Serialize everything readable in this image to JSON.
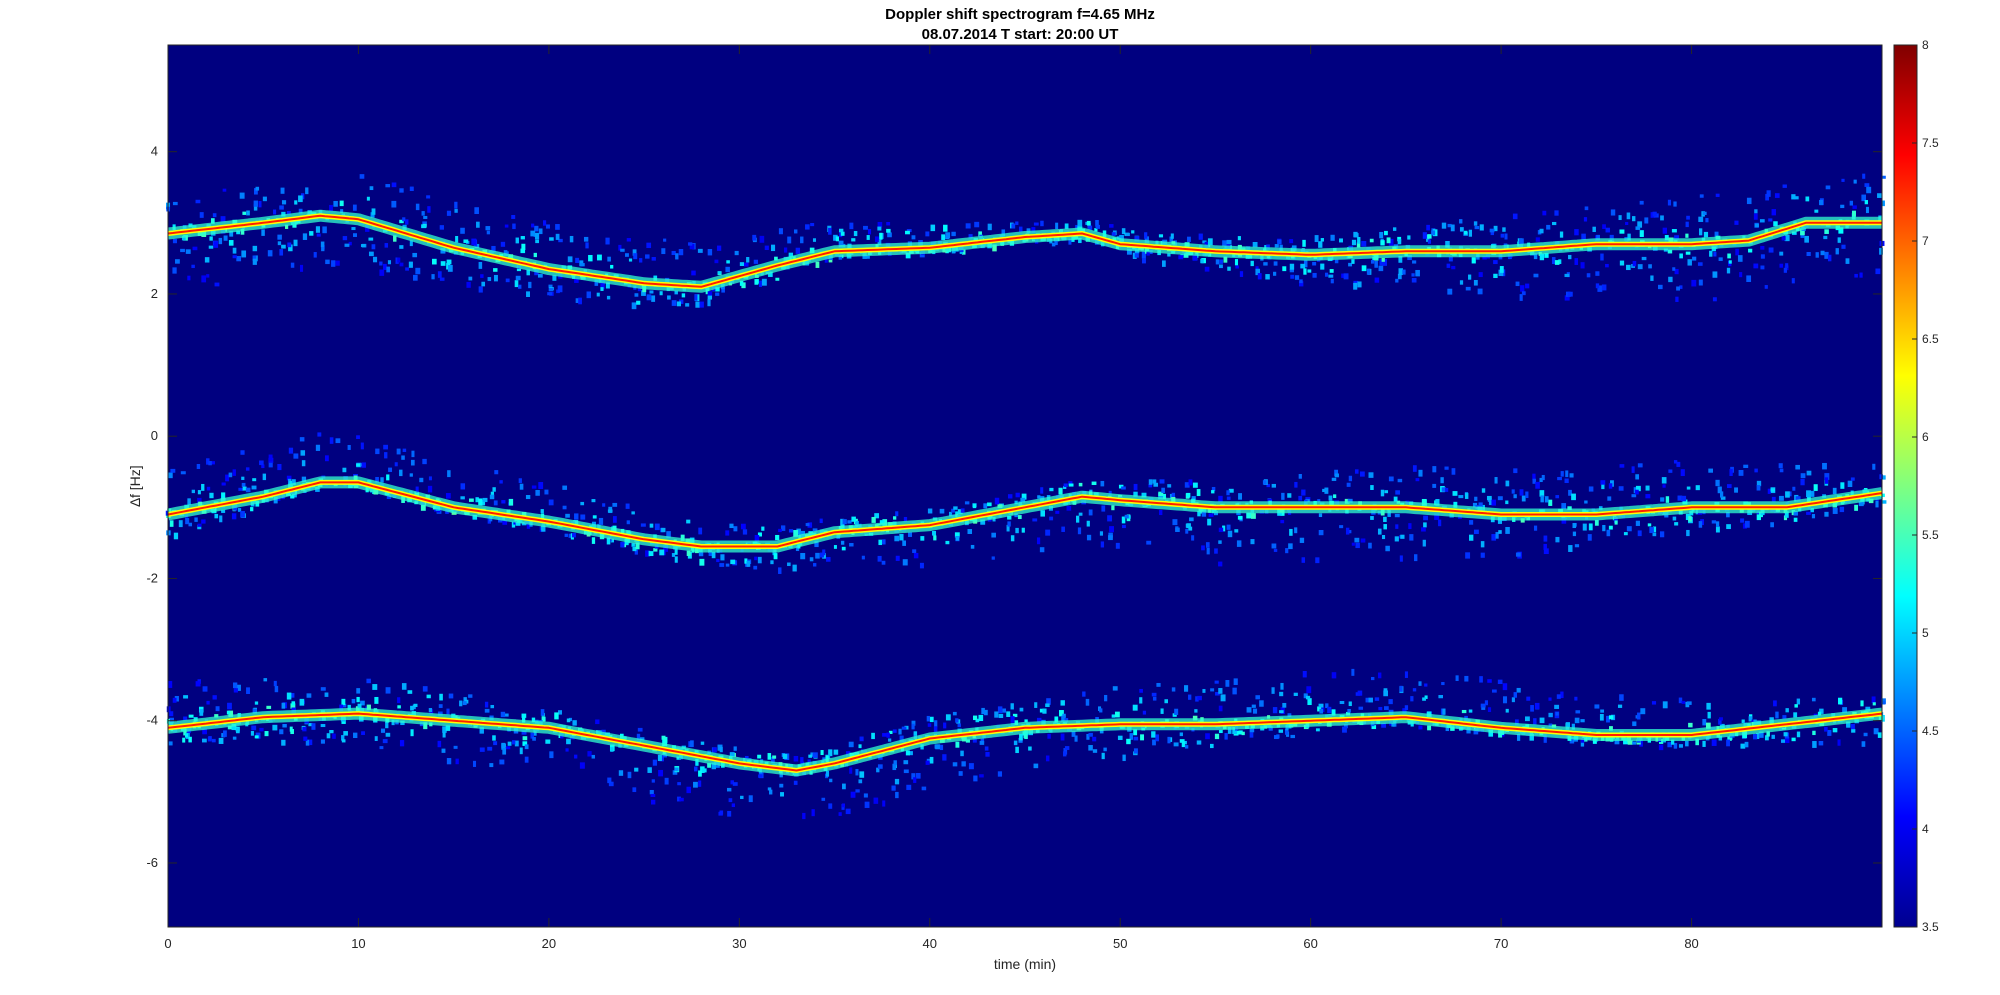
{
  "chart_data": {
    "type": "heatmap",
    "title": "Doppler shift spectrogram f=4.65 MHz",
    "subtitle": "08.07.2014   T start: 20:00 UT",
    "xlabel": "time (min)",
    "ylabel": "∆f [Hz]",
    "xlim": [
      0,
      90
    ],
    "ylim": [
      -6.9,
      5.5
    ],
    "x_ticks": [
      "0",
      "10",
      "20",
      "30",
      "40",
      "50",
      "60",
      "70",
      "80"
    ],
    "y_ticks": [
      "4",
      "2",
      "0",
      "-2",
      "-4",
      "-6"
    ],
    "grid": false,
    "colorbar": {
      "position": "right",
      "min": 3.5,
      "max": 8,
      "ticks": [
        "8",
        "7.5",
        "7",
        "6.5",
        "6",
        "5.5",
        "5",
        "4.5",
        "4",
        "3.5"
      ],
      "colormap": "jet"
    },
    "background_level": 3.5,
    "series": [
      {
        "t": [
          0,
          5,
          8,
          10,
          15,
          20,
          25,
          28,
          32,
          35,
          40,
          45,
          48,
          50,
          55,
          60,
          65,
          70,
          75,
          80,
          83,
          86,
          90
        ],
        "f": [
          2.85,
          3.0,
          3.1,
          3.05,
          2.65,
          2.35,
          2.15,
          2.1,
          2.4,
          2.6,
          2.65,
          2.8,
          2.85,
          2.7,
          2.6,
          2.55,
          2.6,
          2.6,
          2.7,
          2.7,
          2.75,
          3.0,
          3.0
        ]
      },
      {
        "t": [
          0,
          5,
          8,
          10,
          15,
          20,
          25,
          28,
          32,
          35,
          40,
          45,
          48,
          50,
          55,
          60,
          65,
          70,
          75,
          80,
          85,
          90
        ],
        "f": [
          -1.1,
          -0.85,
          -0.65,
          -0.65,
          -1.0,
          -1.2,
          -1.45,
          -1.55,
          -1.55,
          -1.35,
          -1.25,
          -1.0,
          -0.85,
          -0.9,
          -1.0,
          -1.0,
          -1.0,
          -1.1,
          -1.1,
          -1.0,
          -1.0,
          -0.8
        ]
      },
      {
        "t": [
          0,
          5,
          10,
          15,
          20,
          25,
          30,
          33,
          35,
          40,
          45,
          50,
          55,
          60,
          65,
          70,
          75,
          80,
          85,
          90
        ],
        "f": [
          -4.1,
          -3.95,
          -3.9,
          -4.0,
          -4.1,
          -4.35,
          -4.6,
          -4.7,
          -4.6,
          -4.25,
          -4.1,
          -4.05,
          -4.05,
          -4.0,
          -3.95,
          -4.1,
          -4.2,
          -4.2,
          -4.05,
          -3.9
        ]
      }
    ]
  },
  "colors": {
    "background_level": "#00008f",
    "axis_text": "#262626",
    "frame": "#262626"
  }
}
